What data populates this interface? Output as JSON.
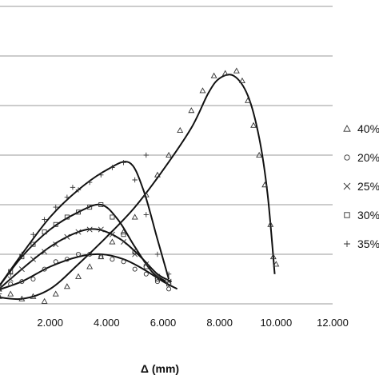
{
  "chart_data": {
    "type": "scatter",
    "title": "",
    "xlabel": "Δ (mm)",
    "ylabel": "",
    "xlim": [
      0,
      12
    ],
    "ylim": [
      0,
      6
    ],
    "x_ticks": [
      2,
      4,
      6,
      8,
      10,
      12
    ],
    "x_tick_labels": [
      "2.000",
      "4.000",
      "6.000",
      "8.000",
      "10.000",
      "12.000"
    ],
    "y_gridlines": [
      0,
      1,
      2,
      3,
      4,
      5,
      6
    ],
    "grid": "horizontal",
    "legend_position": "right",
    "series": [
      {
        "name": "40%",
        "marker": "triangle",
        "points": [
          [
            0.2,
            0.15
          ],
          [
            0.6,
            0.2
          ],
          [
            1.0,
            0.1
          ],
          [
            1.4,
            0.15
          ],
          [
            1.8,
            0.05
          ],
          [
            2.2,
            0.2
          ],
          [
            2.6,
            0.35
          ],
          [
            3.0,
            0.55
          ],
          [
            3.4,
            0.75
          ],
          [
            3.8,
            0.95
          ],
          [
            4.2,
            1.25
          ],
          [
            4.6,
            1.45
          ],
          [
            5.0,
            1.75
          ],
          [
            5.4,
            2.2
          ],
          [
            5.8,
            2.6
          ],
          [
            6.2,
            3.0
          ],
          [
            6.6,
            3.5
          ],
          [
            7.0,
            3.9
          ],
          [
            7.4,
            4.3
          ],
          [
            7.8,
            4.6
          ],
          [
            8.2,
            4.65
          ],
          [
            8.6,
            4.7
          ],
          [
            8.8,
            4.5
          ],
          [
            9.0,
            4.1
          ],
          [
            9.2,
            3.6
          ],
          [
            9.4,
            3.0
          ],
          [
            9.6,
            2.4
          ],
          [
            9.8,
            1.6
          ],
          [
            9.9,
            0.95
          ],
          [
            10.0,
            0.8
          ]
        ],
        "fit": [
          [
            0.0,
            0.15
          ],
          [
            1.0,
            0.1
          ],
          [
            2.0,
            0.3
          ],
          [
            3.0,
            0.8
          ],
          [
            4.0,
            1.35
          ],
          [
            5.0,
            1.95
          ],
          [
            6.0,
            2.7
          ],
          [
            7.0,
            3.55
          ],
          [
            7.6,
            4.25
          ],
          [
            8.0,
            4.55
          ],
          [
            8.5,
            4.6
          ],
          [
            9.0,
            4.2
          ],
          [
            9.4,
            3.35
          ],
          [
            9.7,
            2.2
          ],
          [
            9.95,
            0.6
          ]
        ]
      },
      {
        "name": "20%",
        "marker": "circle",
        "points": [
          [
            0.2,
            0.35
          ],
          [
            0.6,
            0.4
          ],
          [
            1.0,
            0.45
          ],
          [
            1.4,
            0.5
          ],
          [
            1.8,
            0.7
          ],
          [
            2.2,
            0.85
          ],
          [
            2.6,
            0.9
          ],
          [
            3.0,
            1.0
          ],
          [
            3.4,
            1.0
          ],
          [
            3.8,
            0.95
          ],
          [
            4.2,
            0.9
          ],
          [
            4.6,
            0.85
          ],
          [
            5.0,
            0.7
          ],
          [
            5.4,
            0.6
          ],
          [
            5.8,
            0.45
          ],
          [
            6.2,
            0.3
          ]
        ],
        "fit": [
          [
            0.0,
            0.25
          ],
          [
            1.0,
            0.45
          ],
          [
            2.0,
            0.75
          ],
          [
            3.0,
            0.95
          ],
          [
            3.8,
            1.0
          ],
          [
            4.6,
            0.9
          ],
          [
            5.3,
            0.7
          ],
          [
            6.0,
            0.45
          ],
          [
            6.5,
            0.3
          ]
        ]
      },
      {
        "name": "25%",
        "marker": "cross",
        "points": [
          [
            0.2,
            0.3
          ],
          [
            0.6,
            0.5
          ],
          [
            1.0,
            0.7
          ],
          [
            1.4,
            0.9
          ],
          [
            1.8,
            1.05
          ],
          [
            2.2,
            1.2
          ],
          [
            2.6,
            1.35
          ],
          [
            3.0,
            1.45
          ],
          [
            3.4,
            1.5
          ],
          [
            3.8,
            1.5
          ],
          [
            4.2,
            1.4
          ],
          [
            4.6,
            1.25
          ],
          [
            5.0,
            1.0
          ],
          [
            5.4,
            0.8
          ],
          [
            5.8,
            0.55
          ],
          [
            6.2,
            0.45
          ]
        ],
        "fit": [
          [
            0.0,
            0.2
          ],
          [
            1.0,
            0.7
          ],
          [
            2.0,
            1.15
          ],
          [
            3.0,
            1.45
          ],
          [
            3.7,
            1.5
          ],
          [
            4.5,
            1.3
          ],
          [
            5.2,
            0.95
          ],
          [
            5.8,
            0.6
          ],
          [
            6.3,
            0.45
          ]
        ]
      },
      {
        "name": "30%",
        "marker": "square",
        "points": [
          [
            0.2,
            0.3
          ],
          [
            0.6,
            0.65
          ],
          [
            1.0,
            0.95
          ],
          [
            1.4,
            1.2
          ],
          [
            1.8,
            1.45
          ],
          [
            2.2,
            1.6
          ],
          [
            2.6,
            1.75
          ],
          [
            3.0,
            1.85
          ],
          [
            3.4,
            1.95
          ],
          [
            3.8,
            2.0
          ],
          [
            4.2,
            1.75
          ],
          [
            4.6,
            1.4
          ],
          [
            5.0,
            1.05
          ],
          [
            5.4,
            0.75
          ],
          [
            5.8,
            0.5
          ],
          [
            6.2,
            0.4
          ]
        ],
        "fit": [
          [
            0.0,
            0.2
          ],
          [
            1.0,
            0.95
          ],
          [
            2.0,
            1.5
          ],
          [
            3.0,
            1.85
          ],
          [
            3.8,
            2.0
          ],
          [
            4.4,
            1.7
          ],
          [
            5.0,
            1.15
          ],
          [
            5.6,
            0.65
          ],
          [
            6.1,
            0.45
          ]
        ]
      },
      {
        "name": "35%",
        "marker": "plus",
        "points": [
          [
            0.2,
            0.2
          ],
          [
            0.6,
            0.6
          ],
          [
            1.0,
            1.0
          ],
          [
            1.4,
            1.4
          ],
          [
            1.8,
            1.7
          ],
          [
            2.2,
            1.95
          ],
          [
            2.6,
            2.15
          ],
          [
            3.0,
            2.3
          ],
          [
            3.4,
            2.45
          ],
          [
            3.8,
            2.6
          ],
          [
            4.2,
            2.75
          ],
          [
            4.6,
            2.85
          ],
          [
            5.0,
            2.5
          ],
          [
            5.4,
            1.8
          ],
          [
            5.8,
            1.0
          ],
          [
            6.2,
            0.6
          ],
          [
            5.4,
            3.0
          ],
          [
            2.8,
            2.35
          ]
        ],
        "fit": [
          [
            0.0,
            0.2
          ],
          [
            1.0,
            1.0
          ],
          [
            2.0,
            1.75
          ],
          [
            3.0,
            2.3
          ],
          [
            4.0,
            2.7
          ],
          [
            4.8,
            2.85
          ],
          [
            5.3,
            2.3
          ],
          [
            5.8,
            1.3
          ],
          [
            6.2,
            0.5
          ]
        ]
      }
    ]
  }
}
